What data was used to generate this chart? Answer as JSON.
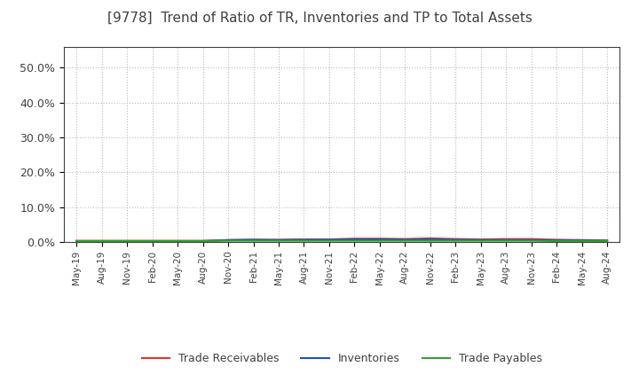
{
  "title": "[9778]  Trend of Ratio of TR, Inventories and TP to Total Assets",
  "title_fontsize": 11,
  "title_fontweight": "normal",
  "title_color": "#404040",
  "ylim": [
    0.0,
    0.56
  ],
  "yticks": [
    0.0,
    0.1,
    0.2,
    0.3,
    0.4,
    0.5
  ],
  "ytick_labels": [
    "0.0%",
    "10.0%",
    "20.0%",
    "30.0%",
    "40.0%",
    "50.0%"
  ],
  "xtick_labels": [
    "May-19",
    "Aug-19",
    "Nov-19",
    "Feb-20",
    "May-20",
    "Aug-20",
    "Nov-20",
    "Feb-21",
    "May-21",
    "Aug-21",
    "Nov-21",
    "Feb-22",
    "May-22",
    "Aug-22",
    "Nov-22",
    "Feb-23",
    "May-23",
    "Aug-23",
    "Nov-23",
    "Feb-24",
    "May-24",
    "Aug-24"
  ],
  "trade_receivables": [
    0.003,
    0.003,
    0.003,
    0.003,
    0.003,
    0.003,
    0.005,
    0.006,
    0.006,
    0.007,
    0.007,
    0.009,
    0.009,
    0.008,
    0.01,
    0.008,
    0.007,
    0.008,
    0.008,
    0.006,
    0.005,
    0.004
  ],
  "inventories": [
    0.002,
    0.002,
    0.002,
    0.002,
    0.002,
    0.002,
    0.005,
    0.006,
    0.005,
    0.006,
    0.006,
    0.007,
    0.007,
    0.006,
    0.007,
    0.006,
    0.005,
    0.005,
    0.005,
    0.004,
    0.004,
    0.003
  ],
  "trade_payables": [
    0.002,
    0.002,
    0.002,
    0.002,
    0.002,
    0.002,
    0.003,
    0.003,
    0.003,
    0.003,
    0.003,
    0.003,
    0.003,
    0.003,
    0.003,
    0.003,
    0.003,
    0.003,
    0.003,
    0.002,
    0.002,
    0.002
  ],
  "tr_color": "#e8312a",
  "inv_color": "#2050c8",
  "tp_color": "#30a030",
  "background_color": "#ffffff",
  "plot_bg_color": "#ffffff",
  "grid_color": "#bbbbbb",
  "spine_color": "#404040",
  "legend_labels": [
    "Trade Receivables",
    "Inventories",
    "Trade Payables"
  ]
}
